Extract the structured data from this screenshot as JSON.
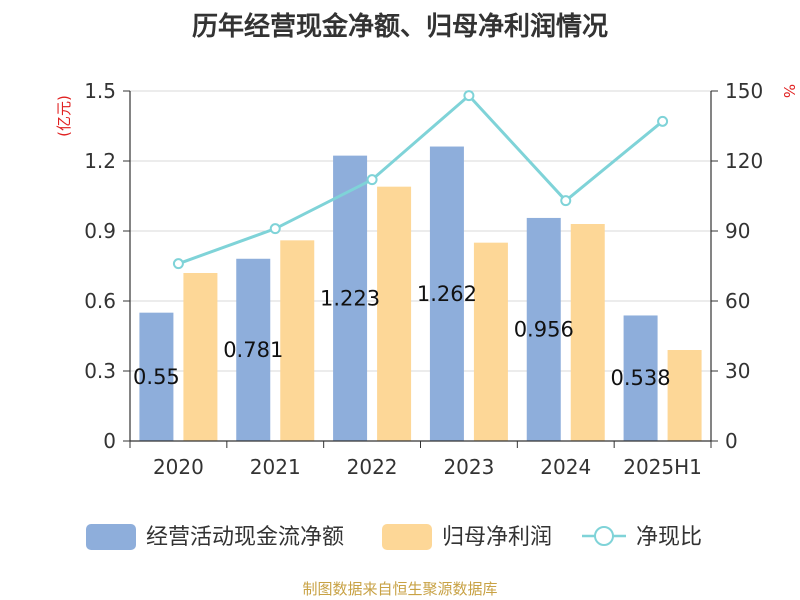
{
  "chart_data": {
    "type": "bar",
    "title": "历年经营现金净额、归母净利润情况",
    "categories": [
      "2020",
      "2021",
      "2022",
      "2023",
      "2024",
      "2025H1"
    ],
    "series": [
      {
        "name": "经营活动现金流净额",
        "kind": "bar",
        "axis": "left",
        "color": "#8eaedb",
        "values": [
          0.55,
          0.781,
          1.223,
          1.262,
          0.956,
          0.538
        ],
        "labels": [
          "0.55",
          "0.781",
          "1.223",
          "1.262",
          "0.956",
          "0.538"
        ]
      },
      {
        "name": "归母净利润",
        "kind": "bar",
        "axis": "left",
        "color": "#fdd797",
        "values": [
          0.72,
          0.86,
          1.09,
          0.85,
          0.93,
          0.39
        ]
      },
      {
        "name": "净现比",
        "kind": "line",
        "axis": "right",
        "color": "#7fd3d8",
        "values": [
          76,
          91,
          112,
          148,
          103,
          137
        ]
      }
    ],
    "y_left": {
      "label": "(亿元)",
      "min": 0,
      "max": 1.5,
      "ticks": [
        "0",
        "0.3",
        "0.6",
        "0.9",
        "1.2",
        "1.5"
      ]
    },
    "y_right": {
      "label": "%",
      "min": 0,
      "max": 150,
      "ticks": [
        "0",
        "30",
        "60",
        "90",
        "120",
        "150"
      ]
    },
    "grid": true,
    "legend_position": "bottom",
    "source": "制图数据来自恒生聚源数据库"
  }
}
